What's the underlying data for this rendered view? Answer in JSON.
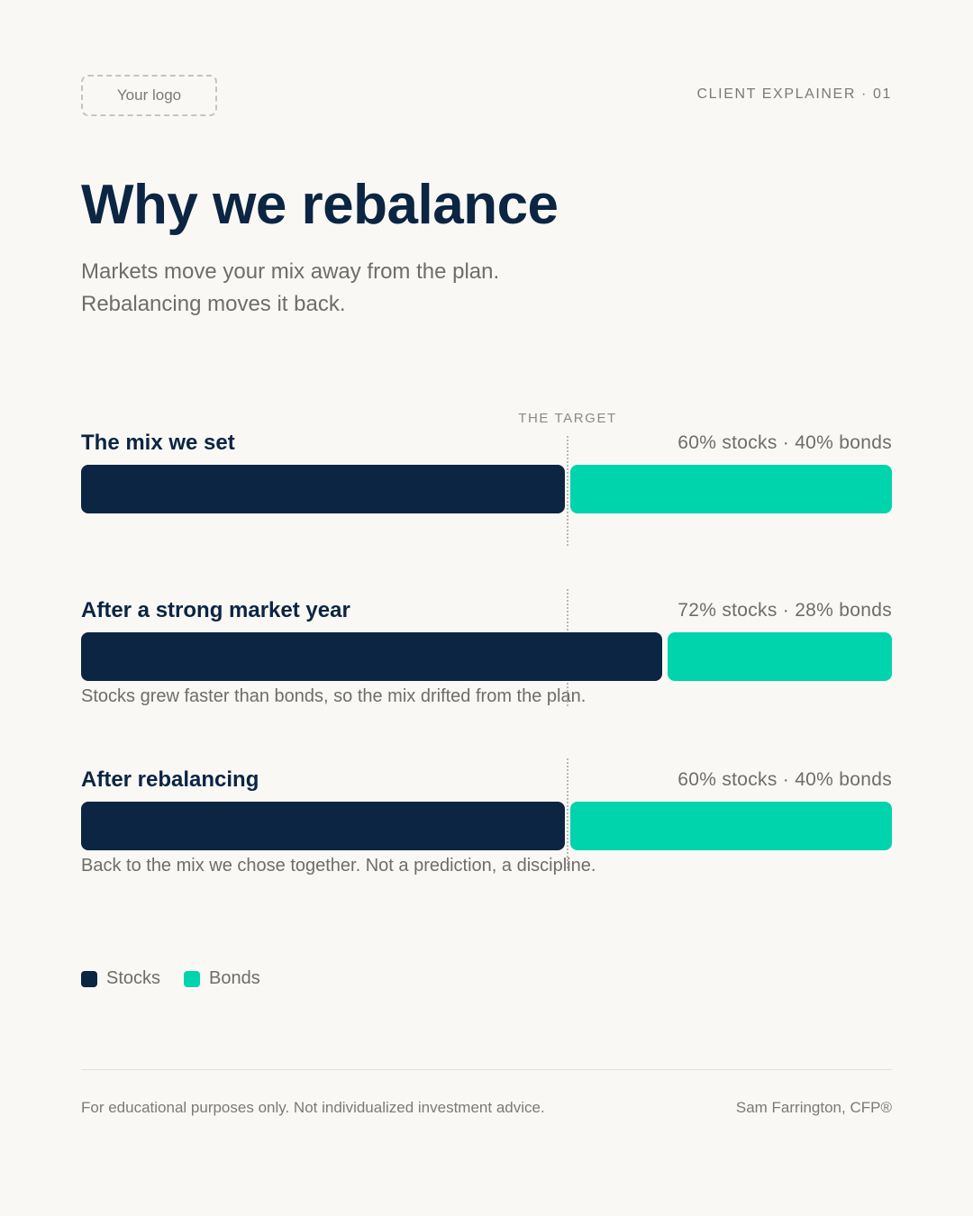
{
  "header": {
    "logo_placeholder": "Your logo",
    "kicker": "CLIENT EXPLAINER · 01"
  },
  "title": "Why we rebalance",
  "subtitle": [
    "Markets move your mix away from the plan.",
    "Rebalancing moves it back."
  ],
  "colors": {
    "stocks": "#0b2542",
    "bonds": "#00d4ac",
    "background": "#f9f8f5"
  },
  "chart_data": {
    "type": "bar",
    "orientation": "horizontal-stacked-100",
    "target_label": "THE TARGET",
    "target_value": 60,
    "series": [
      {
        "name": "Stocks",
        "color": "#0b2542"
      },
      {
        "name": "Bonds",
        "color": "#00d4ac"
      }
    ],
    "rows": [
      {
        "title": "The mix we set",
        "value_label": "60% stocks · 40% bonds",
        "stocks": 60,
        "bonds": 40,
        "note": ""
      },
      {
        "title": "After a strong market year",
        "value_label": "72% stocks · 28% bonds",
        "stocks": 72,
        "bonds": 28,
        "note": "Stocks grew faster than bonds, so the mix drifted from the plan."
      },
      {
        "title": "After rebalancing",
        "value_label": "60% stocks · 40% bonds",
        "stocks": 60,
        "bonds": 40,
        "note": "Back to the mix we chose together. Not a prediction, a discipline."
      }
    ],
    "legend": [
      "Stocks",
      "Bonds"
    ]
  },
  "footer": {
    "disclaimer": "For educational purposes only. Not individualized investment advice.",
    "author": "Sam Farrington, CFP®"
  }
}
